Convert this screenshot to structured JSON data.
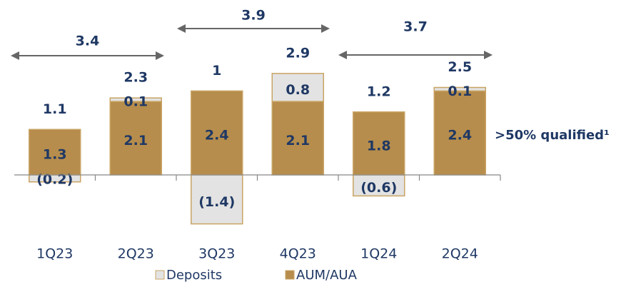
{
  "chart_data": {
    "type": "bar",
    "stacked": true,
    "categories": [
      "1Q23",
      "2Q23",
      "3Q23",
      "4Q23",
      "1Q24",
      "2Q24"
    ],
    "series": [
      {
        "name": "AUM/AUA",
        "color": "#b68d4c",
        "values": [
          1.3,
          2.1,
          2.4,
          2.1,
          1.8,
          2.4
        ]
      },
      {
        "name": "Deposits",
        "color": "#e3e3e3",
        "values": [
          -0.2,
          0.1,
          -1.4,
          0.8,
          -0.6,
          0.1
        ],
        "value_labels": [
          "(0.2)",
          "0.1",
          "(1.4)",
          "0.8",
          "(0.6)",
          "0.1"
        ]
      }
    ],
    "totals": [
      1.1,
      2.3,
      1.0,
      2.9,
      1.2,
      2.5
    ],
    "period_totals": [
      "3.4",
      "3.9",
      "3.7"
    ],
    "annotation": ">50% qualified¹",
    "ylim": [
      -1.5,
      3.5
    ]
  }
}
